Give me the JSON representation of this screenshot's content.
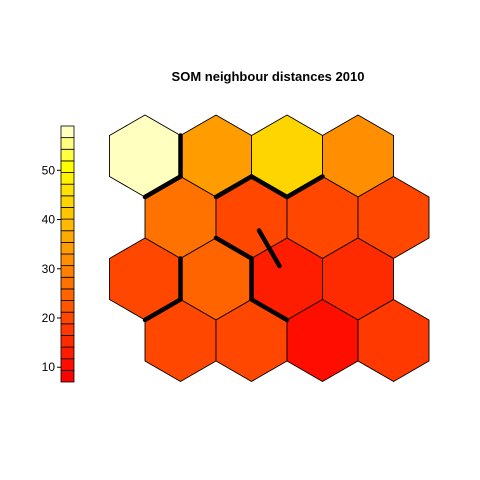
{
  "chart_data": {
    "type": "heatmap",
    "title": "SOM neighbour distances 2010",
    "grid": {
      "rows": 4,
      "cols": 4,
      "topology": "hexagonal"
    },
    "cells": [
      {
        "row": 1,
        "col": 1,
        "value": 58
      },
      {
        "row": 1,
        "col": 2,
        "value": 34
      },
      {
        "row": 1,
        "col": 3,
        "value": 43
      },
      {
        "row": 1,
        "col": 4,
        "value": 32
      },
      {
        "row": 2,
        "col": 1,
        "value": 26
      },
      {
        "row": 2,
        "col": 2,
        "value": 21
      },
      {
        "row": 2,
        "col": 3,
        "value": 20
      },
      {
        "row": 2,
        "col": 4,
        "value": 20
      },
      {
        "row": 3,
        "col": 1,
        "value": 21
      },
      {
        "row": 3,
        "col": 2,
        "value": 24
      },
      {
        "row": 3,
        "col": 3,
        "value": 12
      },
      {
        "row": 3,
        "col": 4,
        "value": 15
      },
      {
        "row": 4,
        "col": 1,
        "value": 20
      },
      {
        "row": 4,
        "col": 2,
        "value": 21
      },
      {
        "row": 4,
        "col": 3,
        "value": 11
      },
      {
        "row": 4,
        "col": 4,
        "value": 17
      }
    ],
    "cluster_boundaries": [
      [
        1,
        1,
        1,
        2
      ],
      [
        1,
        1,
        2,
        1
      ],
      [
        1,
        2,
        2,
        2
      ],
      [
        1,
        3,
        2,
        2
      ],
      [
        1,
        3,
        2,
        3
      ],
      [
        2,
        2,
        3,
        2
      ],
      [
        2,
        3,
        3,
        2
      ],
      [
        3,
        1,
        3,
        2
      ],
      [
        3,
        2,
        3,
        3
      ],
      [
        3,
        1,
        4,
        1
      ],
      [
        3,
        3,
        4,
        2
      ]
    ],
    "legend": {
      "ticks": [
        10,
        20,
        30,
        40,
        50
      ],
      "range": [
        7,
        59
      ],
      "colors": [
        "#FF0000",
        "#FF0E00",
        "#FF1D00",
        "#FF2B00",
        "#FF3900",
        "#FF4700",
        "#FF5600",
        "#FF6400",
        "#FF7200",
        "#FF8000",
        "#FF8E00",
        "#FF9C00",
        "#FFAA00",
        "#FFB900",
        "#FFC700",
        "#FFD500",
        "#FFE300",
        "#FFF100",
        "#FFFF00",
        "#FFFF40",
        "#FFFF80",
        "#FFFFBF"
      ]
    },
    "colors": {
      "border": "#000000",
      "cluster_line": "#000000",
      "background": "#FFFFFF"
    }
  }
}
